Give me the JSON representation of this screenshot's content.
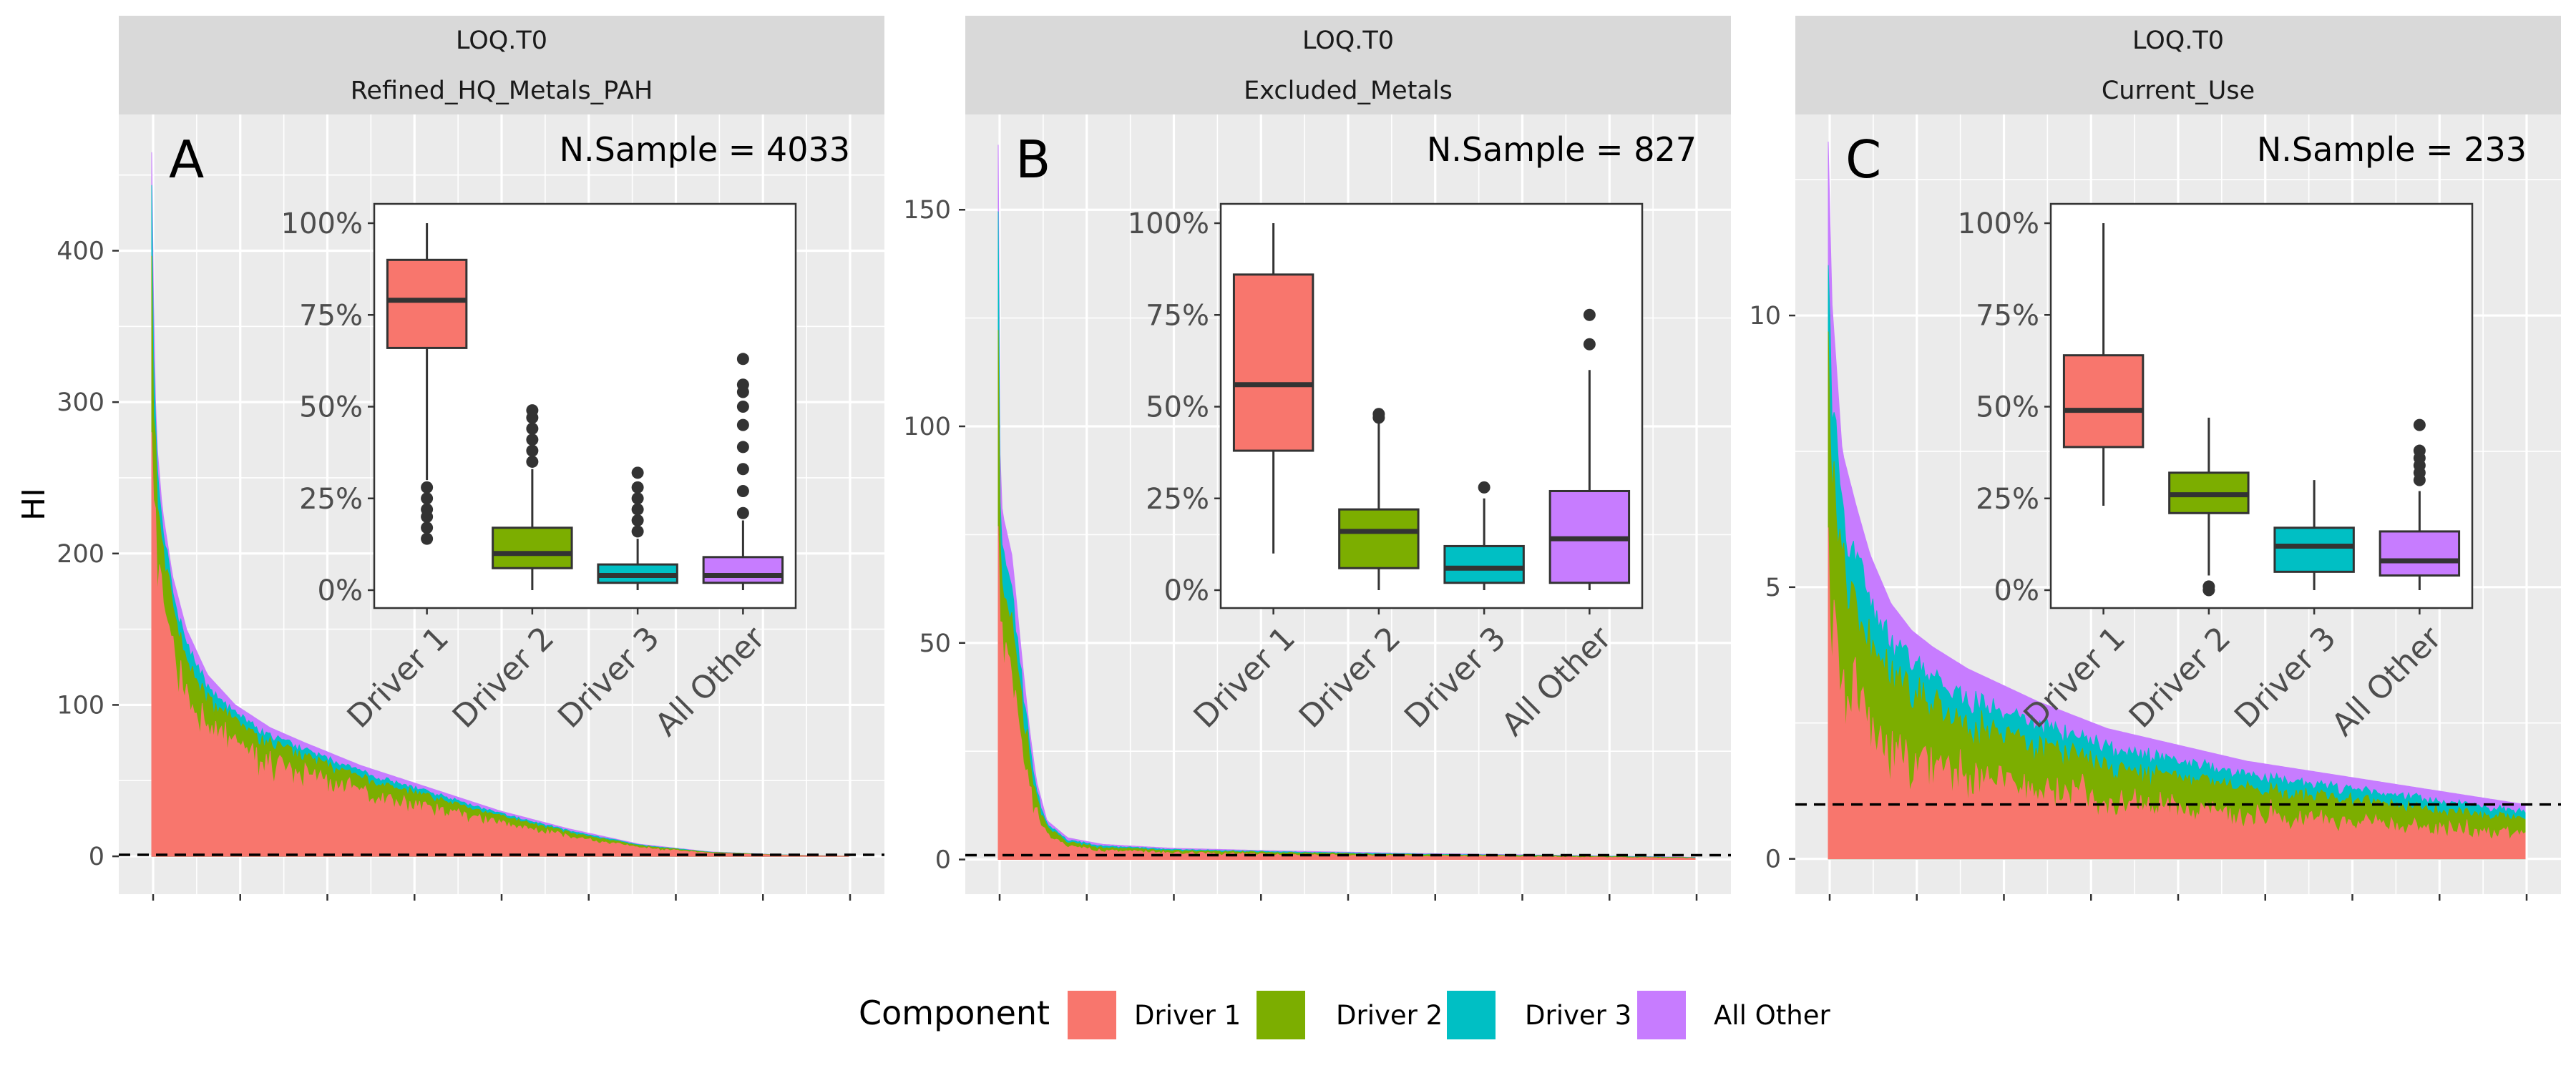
{
  "ylabel": "HI",
  "legend": {
    "title": "Component",
    "items": [
      {
        "label": "Driver 1",
        "color": "#F8766D"
      },
      {
        "label": "Driver 2",
        "color": "#7CAE00"
      },
      {
        "label": "Driver 3",
        "color": "#00BFC4"
      },
      {
        "label": "All Other",
        "color": "#C77CFF"
      }
    ]
  },
  "chart_data": [
    {
      "type": "area",
      "strip": [
        "LOQ.T0",
        "Refined_HQ_Metals_PAH"
      ],
      "panel_label": "A",
      "annotation": "N.Sample = 4033",
      "ylabel": "HI",
      "ylim": [
        -25,
        490
      ],
      "yticks": [
        0,
        100,
        200,
        300,
        400
      ],
      "reference_line": 1,
      "series_names": [
        "Driver 1",
        "Driver 2",
        "Driver 3",
        "All Other"
      ],
      "profile": {
        "rank_fraction": [
          0,
          0.004,
          0.008,
          0.015,
          0.03,
          0.05,
          0.08,
          0.12,
          0.17,
          0.22,
          0.3,
          0.4,
          0.5,
          0.6,
          0.7,
          0.8,
          0.9,
          0.95,
          1.0
        ],
        "total_HI": [
          465,
          320,
          270,
          230,
          185,
          150,
          120,
          100,
          85,
          75,
          60,
          45,
          30,
          18,
          8,
          3,
          1,
          0.5,
          0.1
        ]
      },
      "inset_boxplot": {
        "categories": [
          "Driver 1",
          "Driver 2",
          "Driver 3",
          "All Other"
        ],
        "ytick_labels": [
          "0%",
          "25%",
          "50%",
          "75%",
          "100%"
        ],
        "boxes": [
          {
            "q1": 0.66,
            "median": 0.79,
            "q3": 0.9,
            "whisker_low": 0.3,
            "whisker_high": 1.0,
            "outliers": [
              0.14,
              0.17,
              0.2,
              0.22,
              0.25,
              0.28
            ]
          },
          {
            "q1": 0.06,
            "median": 0.1,
            "q3": 0.17,
            "whisker_low": 0.0,
            "whisker_high": 0.33,
            "outliers": [
              0.35,
              0.38,
              0.41,
              0.44,
              0.47,
              0.49
            ]
          },
          {
            "q1": 0.02,
            "median": 0.04,
            "q3": 0.07,
            "whisker_low": 0.0,
            "whisker_high": 0.14,
            "outliers": [
              0.16,
              0.19,
              0.22,
              0.25,
              0.28,
              0.32
            ]
          },
          {
            "q1": 0.02,
            "median": 0.04,
            "q3": 0.09,
            "whisker_low": 0.0,
            "whisker_high": 0.19,
            "outliers": [
              0.21,
              0.27,
              0.33,
              0.39,
              0.45,
              0.5,
              0.54,
              0.56,
              0.63
            ]
          }
        ]
      }
    },
    {
      "type": "area",
      "strip": [
        "LOQ.T0",
        "Excluded_Metals"
      ],
      "panel_label": "B",
      "annotation": "N.Sample = 827",
      "ylabel": "",
      "ylim": [
        -8,
        172
      ],
      "yticks": [
        0,
        50,
        100,
        150
      ],
      "reference_line": 1,
      "series_names": [
        "Driver 1",
        "Driver 2",
        "Driver 3",
        "All Other"
      ],
      "profile": {
        "rank_fraction": [
          0,
          0.003,
          0.006,
          0.02,
          0.035,
          0.045,
          0.055,
          0.07,
          0.1,
          0.15,
          0.25,
          0.4,
          0.6,
          0.8,
          1.0
        ],
        "total_HI": [
          165,
          88,
          80,
          70,
          45,
          30,
          18,
          9,
          5,
          3.5,
          2.6,
          2.0,
          1.4,
          1.0,
          0.5
        ]
      },
      "inset_boxplot": {
        "categories": [
          "Driver 1",
          "Driver 2",
          "Driver 3",
          "All Other"
        ],
        "ytick_labels": [
          "0%",
          "25%",
          "50%",
          "75%",
          "100%"
        ],
        "boxes": [
          {
            "q1": 0.38,
            "median": 0.56,
            "q3": 0.86,
            "whisker_low": 0.1,
            "whisker_high": 1.0,
            "outliers": []
          },
          {
            "q1": 0.06,
            "median": 0.16,
            "q3": 0.22,
            "whisker_low": 0.0,
            "whisker_high": 0.46,
            "outliers": [
              0.47,
              0.48
            ]
          },
          {
            "q1": 0.02,
            "median": 0.06,
            "q3": 0.12,
            "whisker_low": 0.0,
            "whisker_high": 0.25,
            "outliers": [
              0.28
            ]
          },
          {
            "q1": 0.02,
            "median": 0.14,
            "q3": 0.27,
            "whisker_low": 0.0,
            "whisker_high": 0.6,
            "outliers": [
              0.67,
              0.75
            ]
          }
        ]
      }
    },
    {
      "type": "area",
      "strip": [
        "LOQ.T0",
        "Current_Use"
      ],
      "panel_label": "C",
      "annotation": "N.Sample = 233",
      "ylabel": "",
      "ylim": [
        -0.65,
        13.7
      ],
      "yticks": [
        0,
        5,
        10
      ],
      "reference_line": 1,
      "series_names": [
        "Driver 1",
        "Driver 2",
        "Driver 3",
        "All Other"
      ],
      "profile": {
        "rank_fraction": [
          0,
          0.005,
          0.012,
          0.02,
          0.04,
          0.06,
          0.09,
          0.12,
          0.15,
          0.2,
          0.3,
          0.4,
          0.5,
          0.6,
          0.7,
          0.8,
          0.9,
          1.0
        ],
        "total_HI": [
          13.2,
          10.3,
          9.0,
          7.5,
          6.5,
          5.6,
          4.7,
          4.2,
          3.9,
          3.5,
          2.9,
          2.4,
          2.1,
          1.8,
          1.6,
          1.4,
          1.2,
          1.0
        ]
      },
      "inset_boxplot": {
        "categories": [
          "Driver 1",
          "Driver 2",
          "Driver 3",
          "All Other"
        ],
        "ytick_labels": [
          "0%",
          "25%",
          "50%",
          "75%",
          "100%"
        ],
        "boxes": [
          {
            "q1": 0.39,
            "median": 0.49,
            "q3": 0.64,
            "whisker_low": 0.23,
            "whisker_high": 1.0,
            "outliers": []
          },
          {
            "q1": 0.21,
            "median": 0.26,
            "q3": 0.32,
            "whisker_low": 0.04,
            "whisker_high": 0.47,
            "outliers": [
              0.0,
              0.01
            ]
          },
          {
            "q1": 0.05,
            "median": 0.12,
            "q3": 0.17,
            "whisker_low": 0.0,
            "whisker_high": 0.3,
            "outliers": []
          },
          {
            "q1": 0.04,
            "median": 0.08,
            "q3": 0.16,
            "whisker_low": 0.0,
            "whisker_high": 0.27,
            "outliers": [
              0.3,
              0.32,
              0.34,
              0.36,
              0.38,
              0.45
            ]
          }
        ]
      }
    }
  ]
}
